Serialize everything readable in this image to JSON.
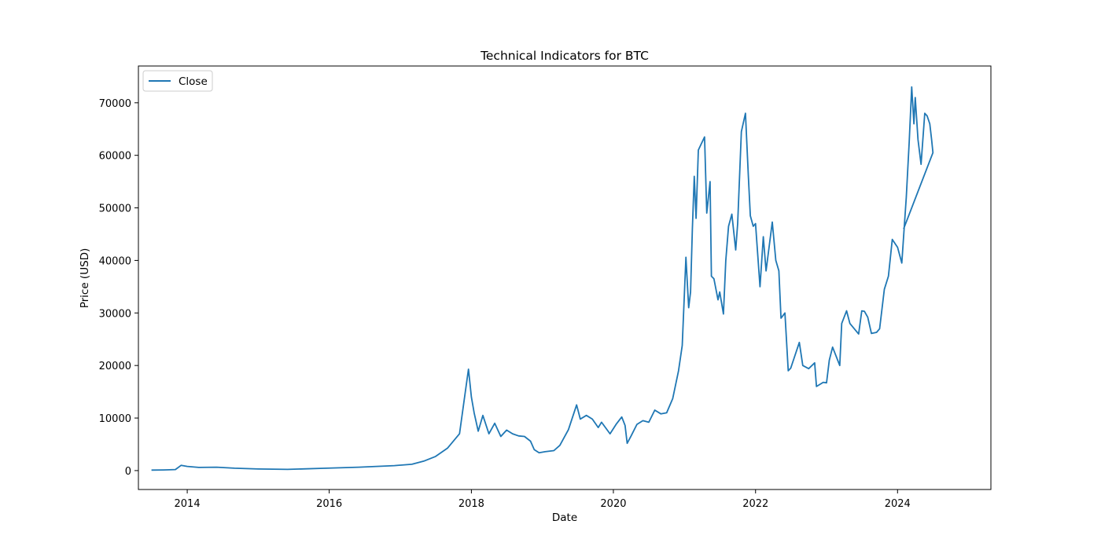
{
  "chart_data": {
    "type": "line",
    "title": "Technical Indicators for BTC",
    "xlabel": "Date",
    "ylabel": "Price (USD)",
    "xlim": [
      "2013-04-25",
      "2025-04-25"
    ],
    "ylim": [
      -3600,
      77000
    ],
    "x_ticks": [
      "2014-01-01",
      "2016-01-01",
      "2018-01-01",
      "2020-01-01",
      "2022-01-01",
      "2024-01-01"
    ],
    "x_tick_labels": [
      "2014",
      "2016",
      "2018",
      "2020",
      "2022",
      "2024"
    ],
    "y_ticks": [
      0,
      10000,
      20000,
      30000,
      40000,
      50000,
      60000,
      70000
    ],
    "y_tick_labels": [
      "0",
      "10000",
      "20000",
      "30000",
      "40000",
      "50000",
      "60000",
      "70000"
    ],
    "grid": false,
    "legend": "top-left",
    "colors": {
      "line": "#1f77b4",
      "axes": "#000000",
      "legend_border": "#cccccc"
    },
    "series": [
      {
        "name": "Close",
        "x": [
          "2013-07-01",
          "2013-09-01",
          "2013-11-01",
          "2013-12-01",
          "2014-01-01",
          "2014-03-01",
          "2014-06-01",
          "2014-09-01",
          "2015-01-01",
          "2015-06-01",
          "2015-12-01",
          "2016-06-01",
          "2016-12-01",
          "2017-03-01",
          "2017-05-01",
          "2017-07-01",
          "2017-09-01",
          "2017-11-01",
          "2017-12-01",
          "2017-12-17",
          "2018-01-01",
          "2018-01-15",
          "2018-02-05",
          "2018-03-01",
          "2018-04-01",
          "2018-05-01",
          "2018-06-01",
          "2018-07-01",
          "2018-08-01",
          "2018-09-01",
          "2018-10-01",
          "2018-11-01",
          "2018-11-20",
          "2018-12-15",
          "2019-01-15",
          "2019-03-01",
          "2019-04-01",
          "2019-05-15",
          "2019-06-26",
          "2019-07-15",
          "2019-08-15",
          "2019-09-15",
          "2019-10-15",
          "2019-11-01",
          "2019-12-15",
          "2020-01-15",
          "2020-02-13",
          "2020-03-01",
          "2020-03-12",
          "2020-04-01",
          "2020-05-01",
          "2020-06-01",
          "2020-07-01",
          "2020-08-01",
          "2020-09-01",
          "2020-10-01",
          "2020-11-01",
          "2020-12-01",
          "2020-12-20",
          "2021-01-08",
          "2021-01-22",
          "2021-02-01",
          "2021-02-10",
          "2021-02-20",
          "2021-03-01",
          "2021-03-13",
          "2021-04-14",
          "2021-04-25",
          "2021-05-12",
          "2021-05-19",
          "2021-06-01",
          "2021-06-22",
          "2021-07-01",
          "2021-07-20",
          "2021-08-01",
          "2021-08-15",
          "2021-09-01",
          "2021-09-21",
          "2021-10-01",
          "2021-10-20",
          "2021-11-10",
          "2021-11-25",
          "2021-12-05",
          "2021-12-20",
          "2022-01-01",
          "2022-01-24",
          "2022-02-10",
          "2022-02-24",
          "2022-03-28",
          "2022-04-15",
          "2022-05-01",
          "2022-05-12",
          "2022-06-01",
          "2022-06-18",
          "2022-07-01",
          "2022-08-14",
          "2022-09-01",
          "2022-10-01",
          "2022-11-01",
          "2022-11-10",
          "2022-12-15",
          "2023-01-01",
          "2023-01-15",
          "2023-02-01",
          "2023-03-10",
          "2023-03-20",
          "2023-04-14",
          "2023-05-01",
          "2023-06-15",
          "2023-07-01",
          "2023-07-15",
          "2023-08-01",
          "2023-08-20",
          "2023-09-15",
          "2023-10-01",
          "2023-10-25",
          "2023-11-15",
          "2023-12-05",
          "2024-01-01",
          "2024-01-23",
          "2024-02-15",
          "2024-03-01",
          "2024-03-14",
          "2024-03-25",
          "2024-04-01",
          "2024-04-15",
          "2024-05-01",
          "2024-05-20",
          "2024-06-01",
          "2024-06-15",
          "2024-06-24",
          "2024-07-01",
          "2024-02-01"
        ],
        "values": [
          97,
          130,
          200,
          1000,
          800,
          600,
          640,
          450,
          300,
          230,
          430,
          650,
          950,
          1200,
          1800,
          2700,
          4300,
          7000,
          15000,
          19300,
          14000,
          11000,
          7500,
          10500,
          7000,
          9000,
          6500,
          7700,
          7000,
          6600,
          6500,
          5600,
          4000,
          3400,
          3600,
          3800,
          4800,
          7800,
          12500,
          9800,
          10500,
          9800,
          8200,
          9200,
          7000,
          8800,
          10200,
          8600,
          5200,
          6600,
          8800,
          9500,
          9200,
          11500,
          10800,
          11000,
          13700,
          19000,
          23800,
          40600,
          31000,
          34000,
          46000,
          56000,
          48000,
          61000,
          63500,
          49000,
          55000,
          37000,
          36500,
          32500,
          34000,
          29800,
          40000,
          46500,
          48800,
          42000,
          47000,
          64500,
          68000,
          56000,
          48500,
          46500,
          47000,
          35000,
          44500,
          38000,
          47300,
          40000,
          38000,
          29000,
          30000,
          19000,
          19500,
          24400,
          20000,
          19400,
          20500,
          16000,
          16800,
          16700,
          21000,
          23500,
          20000,
          28000,
          30400,
          28000,
          26000,
          30400,
          30300,
          29200,
          26100,
          26300,
          27000,
          34500,
          37000,
          44000,
          42500,
          39500,
          52000,
          62500,
          73000,
          66000,
          71000,
          63000,
          58300,
          68000,
          67500,
          66000,
          63000,
          60500,
          46000
        ]
      }
    ]
  }
}
